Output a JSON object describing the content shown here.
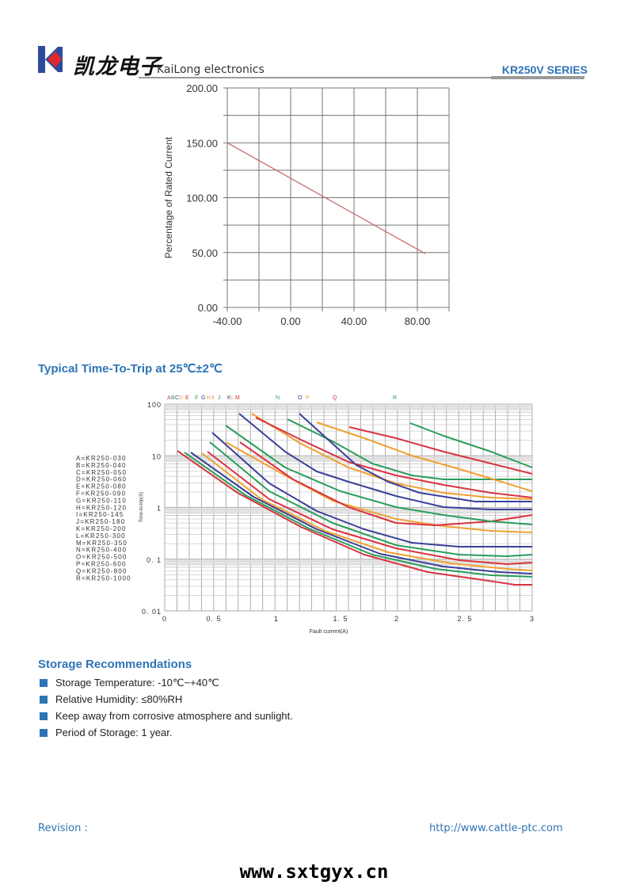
{
  "header": {
    "logo_cn": "凯龙电子",
    "logo_en": "KaiLong electronics",
    "series": "KR250V SERIES"
  },
  "derating_chart": {
    "ylabel": "Percentage of Rated Current",
    "yticks": [
      "200.00",
      "150.00",
      "100.00",
      "50.00",
      "0.00"
    ],
    "xticks": [
      "-40.00",
      "0.00",
      "40.00",
      "80.00"
    ]
  },
  "chart_data": [
    {
      "type": "line",
      "title": "",
      "xlabel": "",
      "ylabel": "Percentage of Rated Current",
      "xlim": [
        -40,
        100
      ],
      "ylim": [
        0,
        200
      ],
      "grid": true,
      "series": [
        {
          "name": "derating",
          "x": [
            -40,
            85
          ],
          "y": [
            150,
            49
          ],
          "color": "#c9706e"
        }
      ]
    },
    {
      "type": "line",
      "title": "Typical Time-To-Trip at 25℃±2℃",
      "xlabel": "Fault current(A)",
      "ylabel": "Time-to-trip(S)",
      "xlim": [
        0,
        3
      ],
      "ylim": [
        0.01,
        100
      ],
      "yscale": "log",
      "grid": true
    }
  ],
  "trip_section": {
    "heading": "Typical Time-To-Trip at 25℃±2℃",
    "ylabel": "Time-to-trip(S)",
    "xlabel": "Fault current(A)",
    "yticks": [
      "100",
      "10",
      "1",
      "0. 1",
      "0. 01"
    ],
    "xticks": [
      "0",
      "0. 5",
      "1",
      "1. 5",
      "2",
      "2. 5",
      "3"
    ],
    "curve_letters": [
      {
        "t": "A",
        "c": "#d9333f"
      },
      {
        "t": "B",
        "c": "#2a9d5c"
      },
      {
        "t": "C",
        "c": "#3a3f9a"
      },
      {
        "t": "D",
        "c": "#f0a030"
      },
      {
        "t": "E",
        "c": "#d9333f"
      },
      {
        "t": "F",
        "c": "#2a9d5c"
      },
      {
        "t": "G",
        "c": "#3a3f9a"
      },
      {
        "t": "H",
        "c": "#f0a030"
      },
      {
        "t": "I",
        "c": "#d9333f"
      },
      {
        "t": "J",
        "c": "#2a9d5c"
      },
      {
        "t": "K",
        "c": "#3a3f9a"
      },
      {
        "t": "L",
        "c": "#f0a030"
      },
      {
        "t": "M",
        "c": "#d9333f"
      },
      {
        "t": "N",
        "c": "#2a9d5c"
      },
      {
        "t": "O",
        "c": "#3a3f9a"
      },
      {
        "t": "P",
        "c": "#f0a030"
      },
      {
        "t": "Q",
        "c": "#d9333f"
      },
      {
        "t": "R",
        "c": "#2a9d5c"
      }
    ],
    "legend": [
      "A=KR250-030",
      "B=KR250-040",
      "C=KR250-050",
      "D=KR250-060",
      "E=KR250-080",
      "F=KR250-090",
      "G=KR250-110",
      "H=KR250-120",
      "I=KR250-145",
      "J=KR250-180",
      "K=KR250-200",
      "L=KR250-300",
      "M=KR250-350",
      "N=KR250-400",
      "O=KR250-500",
      "P=KR250-600",
      "Q=KR250-800",
      "R=KR250-1000"
    ]
  },
  "storage": {
    "heading": "Storage Recommendations",
    "items": [
      "Storage Temperature: -10℃~+40℃",
      "Relative Humidity: ≤80%RH",
      "Keep away from corrosive atmosphere and sunlight.",
      "Period of Storage: 1 year."
    ]
  },
  "footer": {
    "revision": "Revision :",
    "url": "http://www.cattle-ptc.com",
    "watermark": "www.sxtgyx.cn"
  },
  "colors": {
    "accent": "#2e74b5"
  }
}
